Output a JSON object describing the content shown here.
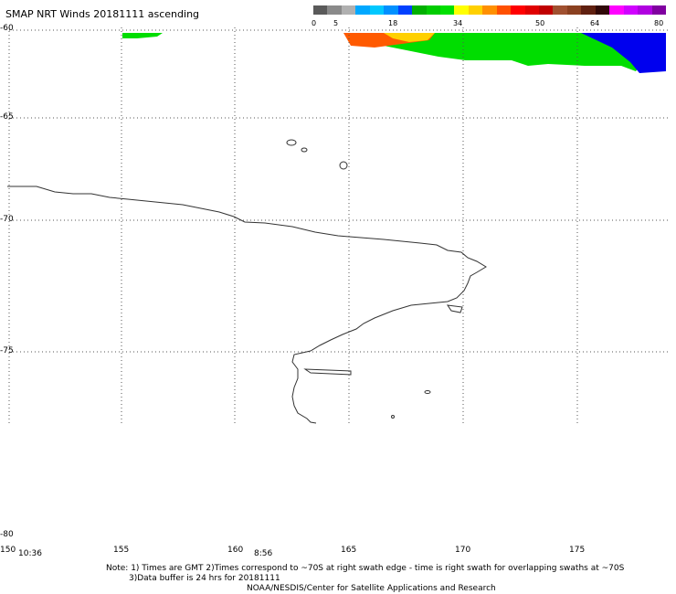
{
  "title": "SMAP NRT Winds 20181111 ascending",
  "colorbar": {
    "labels": [
      "0",
      "5",
      "18",
      "34",
      "50",
      "64",
      "80"
    ],
    "segments": [
      "#5a5a5a",
      "#8a8a8a",
      "#b0b0b0",
      "#00a8ff",
      "#00c8ff",
      "#0090ff",
      "#0040ff",
      "#00b000",
      "#00cc00",
      "#00e000",
      "#ffff00",
      "#ffd000",
      "#ff9000",
      "#ff5000",
      "#ff0000",
      "#e00000",
      "#c00000",
      "#a05030",
      "#8a4020",
      "#602010",
      "#300808",
      "#ff00ff",
      "#d000ff",
      "#b000e0",
      "#8000a0"
    ]
  },
  "lat_labels": [
    "-60",
    "-65",
    "-70",
    "-75",
    "-80"
  ],
  "lon_labels": [
    "150",
    "155",
    "160",
    "165",
    "170",
    "175"
  ],
  "time_labels": [
    "10:36",
    "8:56"
  ],
  "notes": [
    "Note: 1) Times are GMT 2)Times correspond to ~70S at right swath edge - time is right swath for overlapping swaths at ~70S",
    "3)Data buffer is 24 hrs for 20181111",
    "NOAA/NESDIS/Center for Satellite Applications and Research"
  ],
  "colors": {
    "green": "#00dd00",
    "blue": "#0000ff",
    "coast": "#333333"
  }
}
